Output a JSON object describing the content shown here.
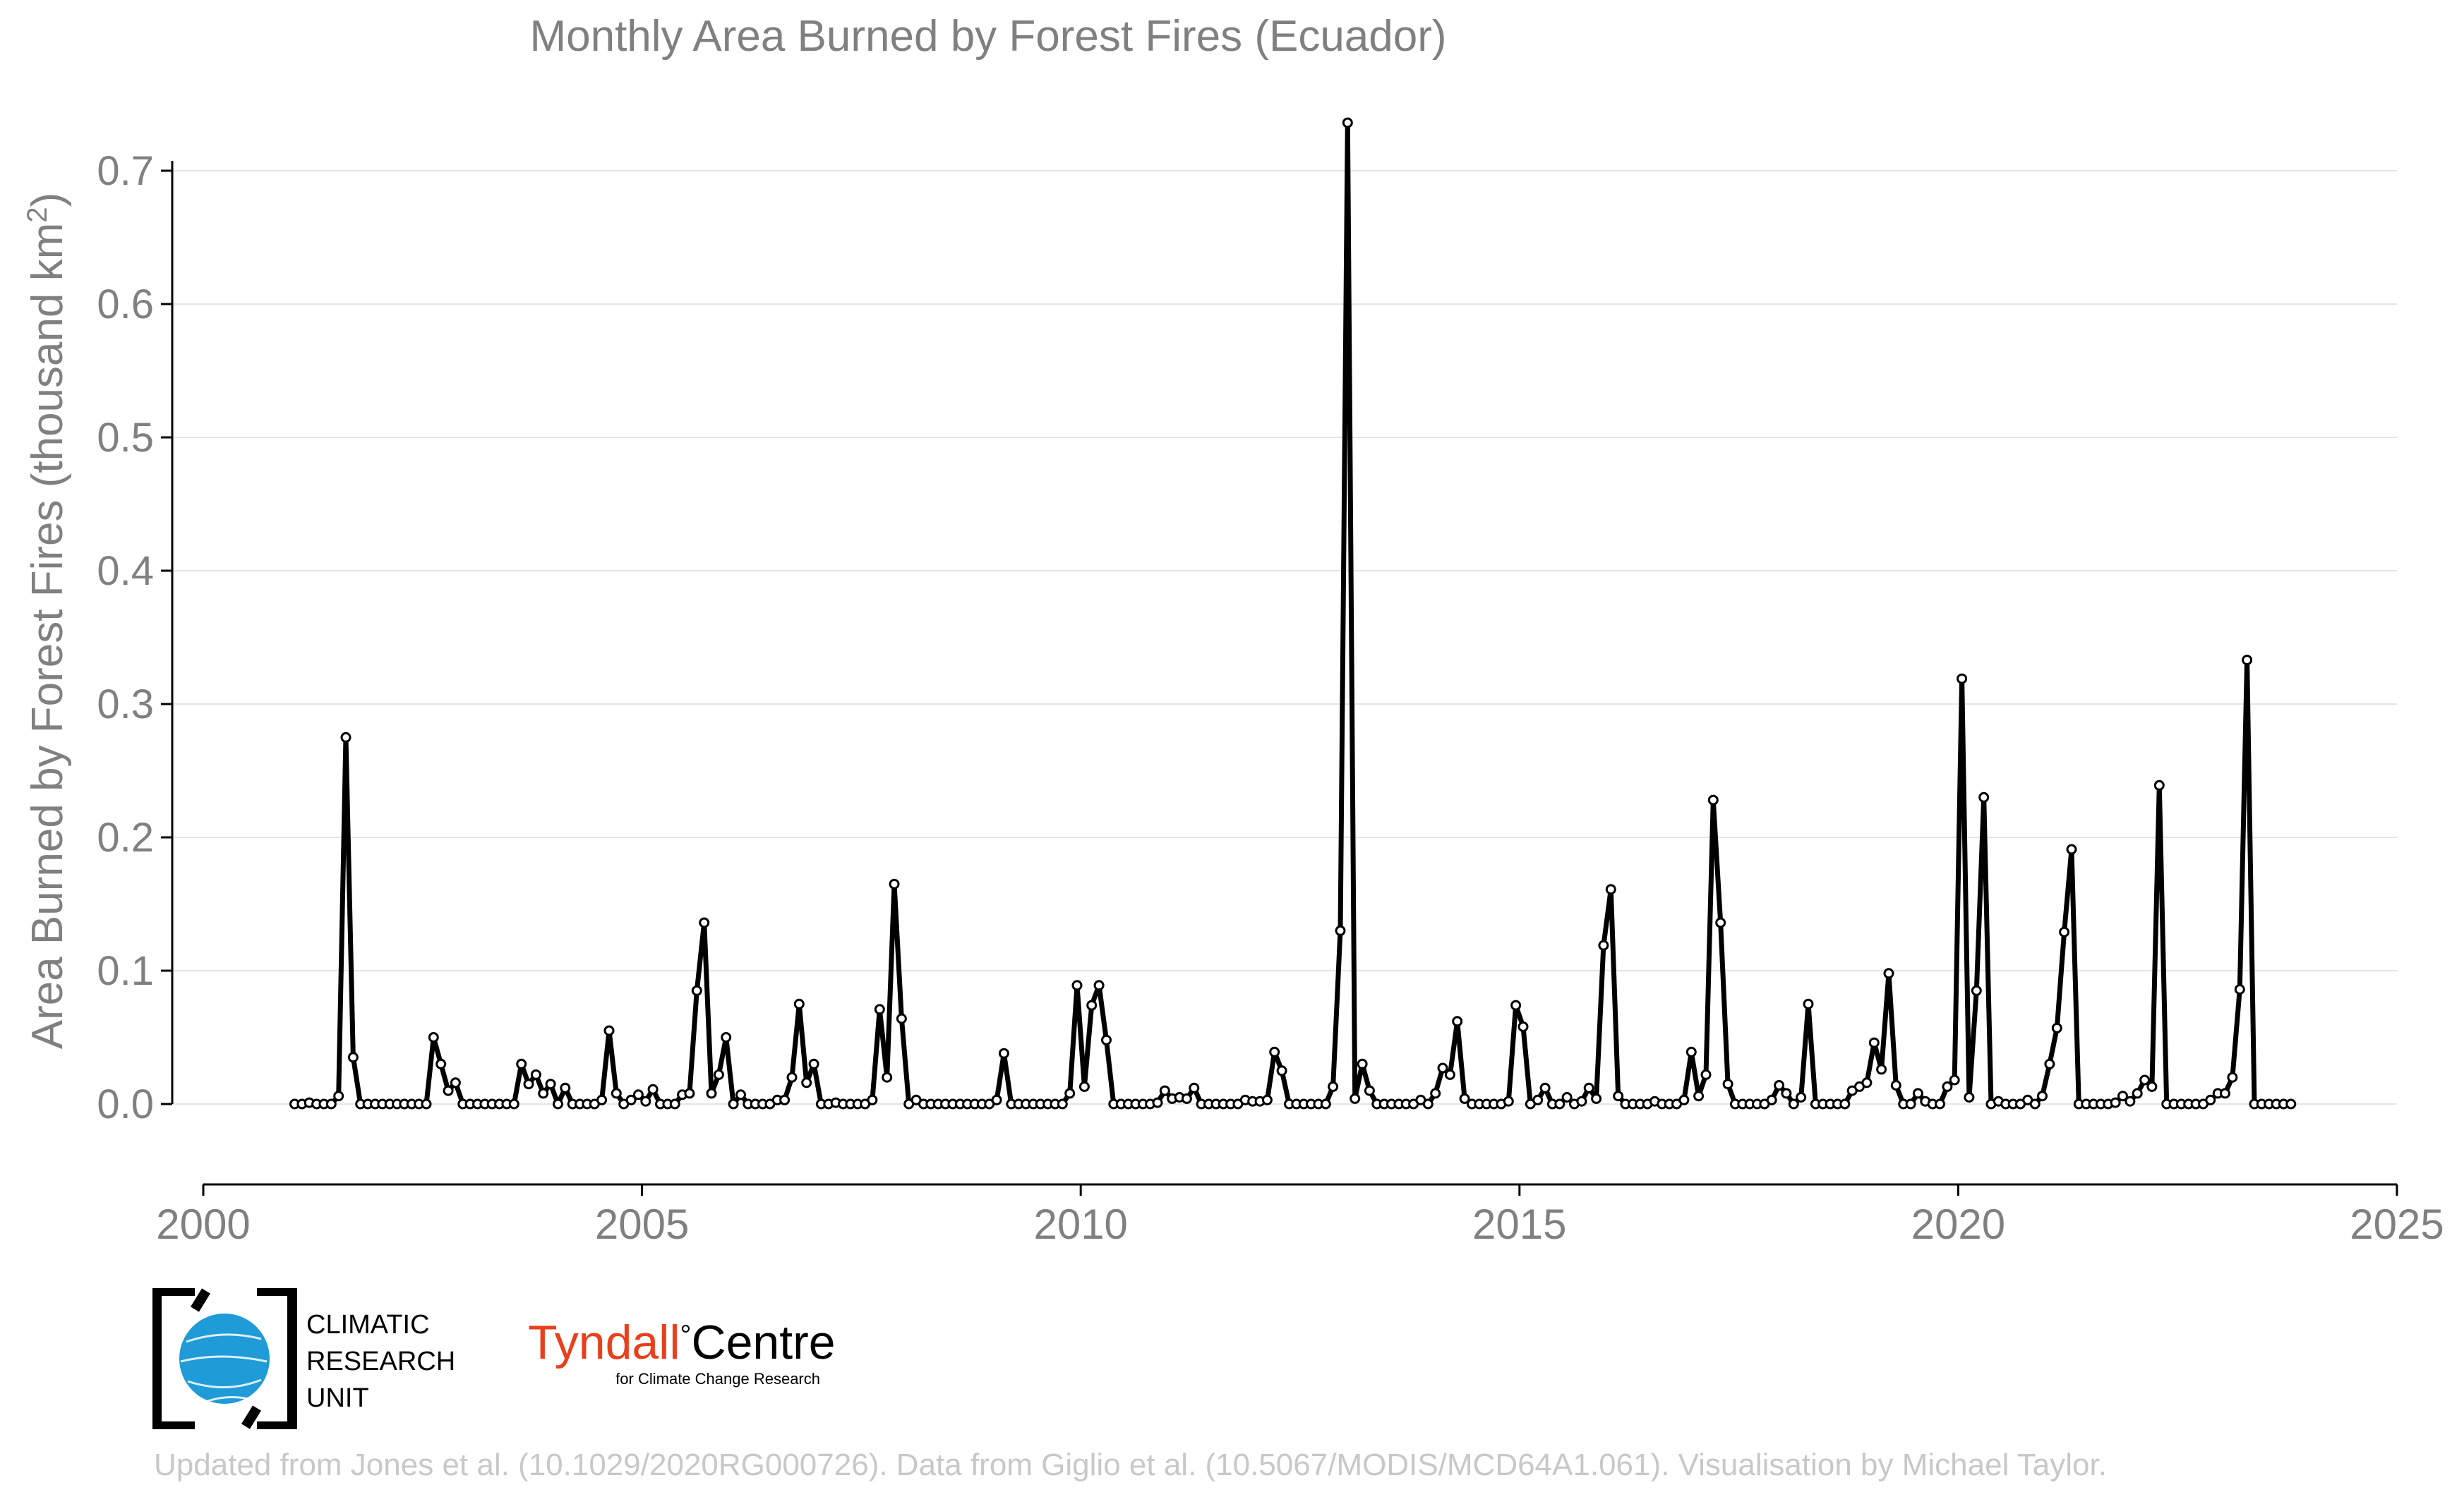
{
  "chart_data": {
    "type": "line",
    "title": "Monthly Area Burned by Forest Fires (Ecuador)",
    "ylabel_prefix": "Area Burned by Forest Fires (thousand km",
    "ylabel_sup": "2",
    "ylabel_suffix": ")",
    "xlabel": "",
    "xlim": [
      2000,
      2025
    ],
    "ylim": [
      -0.06,
      0.75
    ],
    "x_ticks": [
      2000,
      2005,
      2010,
      2015,
      2020,
      2025
    ],
    "y_ticks": [
      0.0,
      0.1,
      0.2,
      0.3,
      0.4,
      0.5,
      0.6,
      0.7
    ],
    "y_tick_labels": [
      "0.0",
      "0.1",
      "0.2",
      "0.3",
      "0.4",
      "0.5",
      "0.6",
      "0.7"
    ],
    "grid": "horizontal",
    "legend": "none",
    "line_color": "#000000",
    "grid_color": "#e5e5e5",
    "text_color": "#808080",
    "series": [
      {
        "start": "2001-01",
        "values": [
          0.0,
          0.0,
          0.001,
          0.0,
          0.0,
          0.0,
          0.006,
          0.275,
          0.035,
          0.0,
          0.0,
          0.0,
          0.0,
          0.0,
          0.0,
          0.0,
          0.0,
          0.0,
          0.0,
          0.05,
          0.03,
          0.01,
          0.016,
          0.0,
          0.0,
          0.0,
          0.0,
          0.0,
          0.0,
          0.0,
          0.0,
          0.03,
          0.015,
          0.022,
          0.008,
          0.015,
          0.0,
          0.012,
          0.0,
          0.0,
          0.0,
          0.0,
          0.003,
          0.055,
          0.008,
          0.0,
          0.003,
          0.007,
          0.002,
          0.011,
          0.0,
          0.0,
          0.0,
          0.007,
          0.008,
          0.085,
          0.136,
          0.008,
          0.022,
          0.05,
          0.0,
          0.007,
          0.0,
          0.0,
          0.0,
          0.0,
          0.003,
          0.003,
          0.02,
          0.075,
          0.016,
          0.03,
          0.0,
          0.0,
          0.001,
          0.0,
          0.0,
          0.0,
          0.0,
          0.003,
          0.071,
          0.02,
          0.165,
          0.064,
          0.0,
          0.003,
          0.0,
          0.0,
          0.0,
          0.0,
          0.0,
          0.0,
          0.0,
          0.0,
          0.0,
          0.0,
          0.003,
          0.038,
          0.0,
          0.0,
          0.0,
          0.0,
          0.0,
          0.0,
          0.0,
          0.0,
          0.008,
          0.089,
          0.013,
          0.074,
          0.089,
          0.048,
          0.0,
          0.0,
          0.0,
          0.0,
          0.0,
          0.0,
          0.001,
          0.01,
          0.004,
          0.005,
          0.004,
          0.012,
          0.0,
          0.0,
          0.0,
          0.0,
          0.0,
          0.0,
          0.003,
          0.002,
          0.002,
          0.003,
          0.039,
          0.025,
          0.0,
          0.0,
          0.0,
          0.0,
          0.0,
          0.0,
          0.013,
          0.13,
          0.736,
          0.004,
          0.03,
          0.01,
          0.0,
          0.0,
          0.0,
          0.0,
          0.0,
          0.0,
          0.003,
          0.0,
          0.008,
          0.027,
          0.022,
          0.062,
          0.004,
          0.0,
          0.0,
          0.0,
          0.0,
          0.0,
          0.002,
          0.074,
          0.058,
          0.0,
          0.003,
          0.012,
          0.0,
          0.0,
          0.005,
          0.0,
          0.002,
          0.012,
          0.004,
          0.119,
          0.161,
          0.006,
          0.0,
          0.0,
          0.0,
          0.0,
          0.002,
          0.0,
          0.0,
          0.0,
          0.003,
          0.039,
          0.006,
          0.022,
          0.228,
          0.136,
          0.015,
          0.0,
          0.0,
          0.0,
          0.0,
          0.0,
          0.003,
          0.014,
          0.008,
          0.0,
          0.005,
          0.075,
          0.0,
          0.0,
          0.0,
          0.0,
          0.0,
          0.01,
          0.013,
          0.016,
          0.046,
          0.026,
          0.098,
          0.014,
          0.0,
          0.0,
          0.008,
          0.002,
          0.0,
          0.0,
          0.013,
          0.018,
          0.319,
          0.005,
          0.085,
          0.23,
          0.0,
          0.002,
          0.0,
          0.0,
          0.0,
          0.003,
          0.0,
          0.006,
          0.03,
          0.057,
          0.129,
          0.191,
          0.0,
          0.0,
          0.0,
          0.0,
          0.0,
          0.001,
          0.006,
          0.002,
          0.008,
          0.018,
          0.013,
          0.239,
          0.0,
          0.0,
          0.0,
          0.0,
          0.0,
          0.0,
          0.003,
          0.008,
          0.008,
          0.02,
          0.086,
          0.333,
          0.0,
          0.0,
          0.0,
          0.0,
          0.0,
          0.0
        ]
      }
    ]
  },
  "logos": {
    "cru": {
      "line1": "CLIMATIC",
      "line2": "RESEARCH",
      "line3": "UNIT",
      "globe_color": "#1f9bd7"
    },
    "tyndall": {
      "name_part1": "Tyndall",
      "degree": "°",
      "name_part2": "Centre",
      "tagline": "for Climate Change Research",
      "accent": "#e8401c"
    }
  },
  "footer": {
    "credit": "Updated from Jones et al. (10.1029/2020RG000726). Data from Giglio et al. (10.5067/MODIS/MCD64A1.061). Visualisation by Michael Taylor."
  }
}
